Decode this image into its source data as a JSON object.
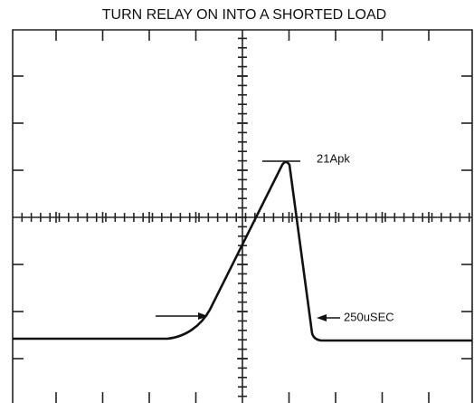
{
  "title": "TURN RELAY ON INTO A SHORTED LOAD",
  "annotations": [
    "21Apk",
    "250uSEC"
  ]
}
